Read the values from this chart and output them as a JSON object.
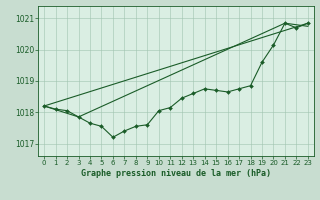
{
  "title": "Graphe pression niveau de la mer (hPa)",
  "background_color": "#c8ddd0",
  "plot_bg_color": "#daeee3",
  "grid_color": "#a0c4b0",
  "line_color": "#1a5c28",
  "xlim": [
    -0.5,
    23.5
  ],
  "ylim": [
    1016.6,
    1021.4
  ],
  "yticks": [
    1017,
    1018,
    1019,
    1020,
    1021
  ],
  "xticks": [
    0,
    1,
    2,
    3,
    4,
    5,
    6,
    7,
    8,
    9,
    10,
    11,
    12,
    13,
    14,
    15,
    16,
    17,
    18,
    19,
    20,
    21,
    22,
    23
  ],
  "detailed_x": [
    0,
    1,
    2,
    3,
    4,
    5,
    6,
    7,
    8,
    9,
    10,
    11,
    12,
    13,
    14,
    15,
    16,
    17,
    18,
    19,
    20,
    21,
    22,
    23
  ],
  "detailed_y": [
    1018.2,
    1018.1,
    1018.05,
    1017.85,
    1017.65,
    1017.55,
    1017.2,
    1017.4,
    1017.55,
    1017.6,
    1018.05,
    1018.15,
    1018.45,
    1018.6,
    1018.75,
    1018.7,
    1018.65,
    1018.75,
    1018.85,
    1019.6,
    1020.15,
    1020.85,
    1020.7,
    1020.85
  ],
  "trend1_x": [
    0,
    23
  ],
  "trend1_y": [
    1018.2,
    1020.85
  ],
  "trend2_x": [
    0,
    3,
    21,
    23
  ],
  "trend2_y": [
    1018.2,
    1017.85,
    1020.85,
    1020.75
  ],
  "font_color": "#1a5c28",
  "title_fontsize": 6,
  "tick_fontsize": 5,
  "linewidth": 0.8,
  "markersize": 2.0
}
